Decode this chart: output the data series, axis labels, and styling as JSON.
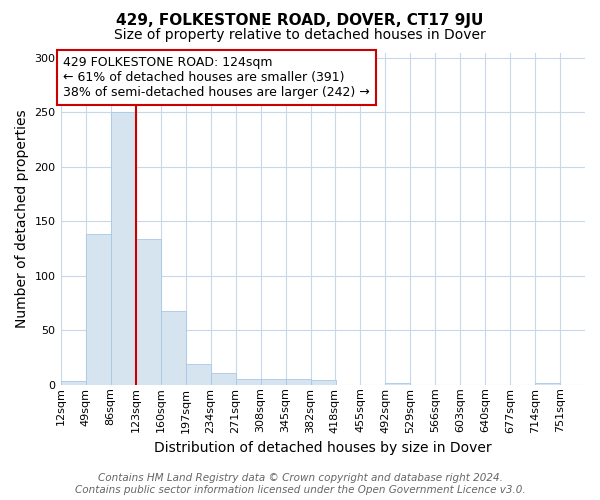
{
  "title": "429, FOLKESTONE ROAD, DOVER, CT17 9JU",
  "subtitle": "Size of property relative to detached houses in Dover",
  "xlabel": "Distribution of detached houses by size in Dover",
  "ylabel": "Number of detached properties",
  "bin_labels": [
    "12sqm",
    "49sqm",
    "86sqm",
    "123sqm",
    "160sqm",
    "197sqm",
    "234sqm",
    "271sqm",
    "308sqm",
    "345sqm",
    "382sqm",
    "418sqm",
    "455sqm",
    "492sqm",
    "529sqm",
    "566sqm",
    "603sqm",
    "640sqm",
    "677sqm",
    "714sqm",
    "751sqm"
  ],
  "bin_edges": [
    12,
    49,
    86,
    123,
    160,
    197,
    234,
    271,
    308,
    345,
    382,
    418,
    455,
    492,
    529,
    566,
    603,
    640,
    677,
    714,
    751
  ],
  "bin_width": 37,
  "heights": [
    3,
    138,
    250,
    134,
    68,
    19,
    11,
    5,
    5,
    5,
    4,
    0,
    0,
    2,
    0,
    0,
    0,
    0,
    0,
    2,
    0
  ],
  "bar_color": "#d6e4f0",
  "bar_edge_color": "#a8c8e8",
  "property_line_x": 123,
  "red_line_color": "#cc0000",
  "ylim": [
    0,
    305
  ],
  "yticks": [
    0,
    50,
    100,
    150,
    200,
    250,
    300
  ],
  "annotation_text": "429 FOLKESTONE ROAD: 124sqm\n← 61% of detached houses are smaller (391)\n38% of semi-detached houses are larger (242) →",
  "annotation_box_facecolor": "#ffffff",
  "annotation_box_edgecolor": "#cc0000",
  "footer_line1": "Contains HM Land Registry data © Crown copyright and database right 2024.",
  "footer_line2": "Contains public sector information licensed under the Open Government Licence v3.0.",
  "background_color": "#ffffff",
  "plot_bg_color": "#ffffff",
  "grid_color": "#c8d8e8",
  "title_fontsize": 11,
  "subtitle_fontsize": 10,
  "axis_label_fontsize": 10,
  "tick_fontsize": 8,
  "annotation_fontsize": 9,
  "footer_fontsize": 7.5
}
